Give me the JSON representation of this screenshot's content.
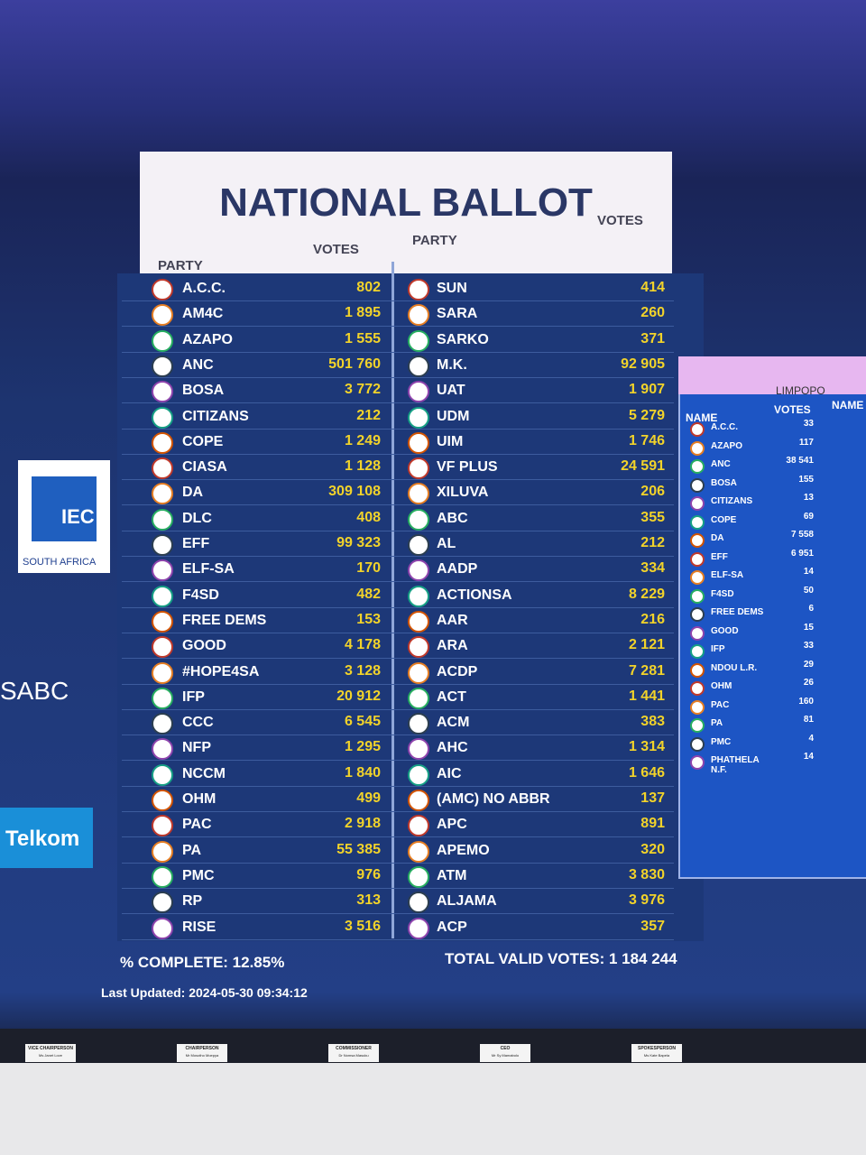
{
  "board": {
    "title": "NATIONAL BALLOT",
    "columns": [
      {
        "party_header": "PARTY",
        "votes_header": "VOTES",
        "rows": [
          [
            "A.C.C.",
            "802"
          ],
          [
            "AM4C",
            "1 895"
          ],
          [
            "AZAPO",
            "1 555"
          ],
          [
            "ANC",
            "501 760"
          ],
          [
            "BOSA",
            "3 772"
          ],
          [
            "CITIZANS",
            "212"
          ],
          [
            "COPE",
            "1 249"
          ],
          [
            "CIASA",
            "1 128"
          ],
          [
            "DA",
            "309 108"
          ],
          [
            "DLC",
            "408"
          ],
          [
            "EFF",
            "99 323"
          ],
          [
            "ELF-SA",
            "170"
          ],
          [
            "F4SD",
            "482"
          ],
          [
            "FREE DEMS",
            "153"
          ],
          [
            "GOOD",
            "4 178"
          ],
          [
            "#HOPE4SA",
            "3 128"
          ],
          [
            "IFP",
            "20 912"
          ],
          [
            "CCC",
            "6 545"
          ],
          [
            "NFP",
            "1 295"
          ],
          [
            "NCCM",
            "1 840"
          ],
          [
            "OHM",
            "499"
          ],
          [
            "PAC",
            "2 918"
          ],
          [
            "PA",
            "55 385"
          ],
          [
            "PMC",
            "976"
          ],
          [
            "RP",
            "313"
          ],
          [
            "RISE",
            "3 516"
          ]
        ]
      },
      {
        "party_header": "PARTY",
        "votes_header": "VOTES",
        "rows": [
          [
            "SUN",
            "414"
          ],
          [
            "SARA",
            "260"
          ],
          [
            "SARKO",
            "371"
          ],
          [
            "M.K.",
            "92 905"
          ],
          [
            "UAT",
            "1 907"
          ],
          [
            "UDM",
            "5 279"
          ],
          [
            "UIM",
            "1 746"
          ],
          [
            "VF PLUS",
            "24 591"
          ],
          [
            "XILUVA",
            "206"
          ],
          [
            "ABC",
            "355"
          ],
          [
            "AL",
            "212"
          ],
          [
            "AADP",
            "334"
          ],
          [
            "ACTIONSA",
            "8 229"
          ],
          [
            "AAR",
            "216"
          ],
          [
            "ARA",
            "2 121"
          ],
          [
            "ACDP",
            "7 281"
          ],
          [
            "ACT",
            "1 441"
          ],
          [
            "ACM",
            "383"
          ],
          [
            "AHC",
            "1 314"
          ],
          [
            "AIC",
            "1 646"
          ],
          [
            "(AMC) NO ABBR",
            "137"
          ],
          [
            "APC",
            "891"
          ],
          [
            "APEMO",
            "320"
          ],
          [
            "ATM",
            "3 830"
          ],
          [
            "ALJAMA",
            "3 976"
          ],
          [
            "ACP",
            "357"
          ]
        ]
      }
    ],
    "complete": "% COMPLETE: 12.85%",
    "total": "TOTAL VALID VOTES: 1 184 244",
    "updated": "Last Updated: 2024-05-30 09:34:12"
  },
  "limpopo": {
    "title": "LIMPOPO",
    "name_header": "NAME",
    "votes_header": "VOTES",
    "second_name_header": "NAME",
    "rows": [
      [
        "A.C.C.",
        "33"
      ],
      [
        "AZAPO",
        "117"
      ],
      [
        "ANC",
        "38 541"
      ],
      [
        "BOSA",
        "155"
      ],
      [
        "CITIZANS",
        "13"
      ],
      [
        "COPE",
        "69"
      ],
      [
        "DA",
        "7 558"
      ],
      [
        "EFF",
        "6 951"
      ],
      [
        "ELF-SA",
        "14"
      ],
      [
        "F4SD",
        "50"
      ],
      [
        "FREE DEMS",
        "6"
      ],
      [
        "GOOD",
        "15"
      ],
      [
        "IFP",
        "33"
      ],
      [
        "NDOU L.R.",
        "29"
      ],
      [
        "OHM",
        "26"
      ],
      [
        "PAC",
        "160"
      ],
      [
        "PA",
        "81"
      ],
      [
        "PMC",
        "4"
      ],
      [
        "PHATHELA N.F.",
        "14"
      ]
    ]
  },
  "sponsors": {
    "iec": "IEC",
    "country": "SOUTH AFRICA",
    "sabc": "SABC",
    "telkom": "Telkom"
  },
  "nameplates": [
    {
      "role": "VICE CHAIRPERSON",
      "name": "Ms Janet Love"
    },
    {
      "role": "CHAIRPERSON",
      "name": "Mr Mosotho Moepya"
    },
    {
      "role": "COMMISSIONER",
      "name": "Dr Nomsa Masuku"
    },
    {
      "role": "CEO",
      "name": "Mr Sy Mamabolo"
    },
    {
      "role": "SPOKESPERSON",
      "name": "Ms Kate Bapela"
    }
  ]
}
